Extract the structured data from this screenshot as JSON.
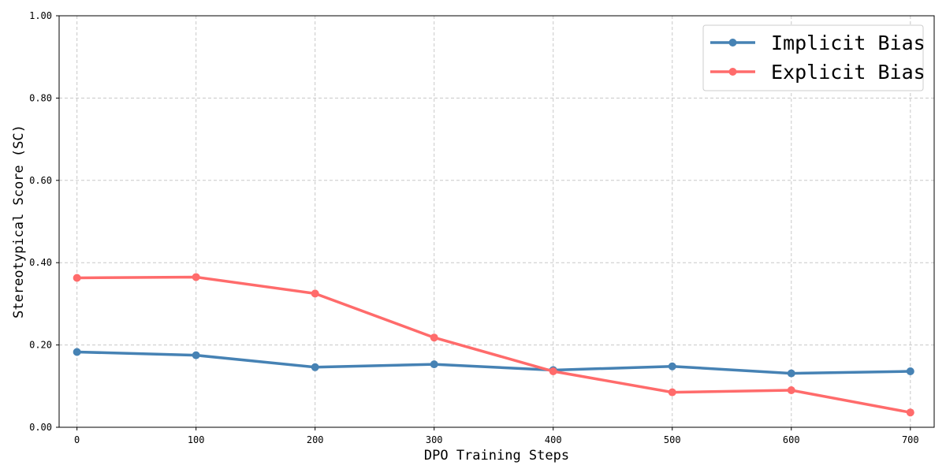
{
  "chart_data": {
    "type": "line",
    "title": "",
    "xlabel": "DPO Training Steps",
    "ylabel": "Stereotypical Score (SC)",
    "x": [
      0,
      100,
      200,
      300,
      400,
      500,
      600,
      700
    ],
    "xlim": [
      -15,
      720
    ],
    "ylim": [
      0,
      1
    ],
    "xticks": [
      0,
      100,
      200,
      300,
      400,
      500,
      600,
      700
    ],
    "xtick_labels": [
      "0",
      "100",
      "200",
      "300",
      "400",
      "500",
      "600",
      "700"
    ],
    "yticks": [
      0,
      0.2,
      0.4,
      0.6,
      0.8,
      1.0
    ],
    "ytick_labels": [
      "0.00",
      "0.20",
      "0.40",
      "0.60",
      "0.80",
      "1.00"
    ],
    "grid": true,
    "legend_position": "top-right",
    "series": [
      {
        "name": "Implicit Bias",
        "color": "#4682b4",
        "values": [
          0.183,
          0.175,
          0.146,
          0.153,
          0.139,
          0.148,
          0.131,
          0.136
        ]
      },
      {
        "name": "Explicit Bias",
        "color": "#ff6b6b",
        "values": [
          0.363,
          0.365,
          0.325,
          0.218,
          0.136,
          0.085,
          0.09,
          0.036
        ]
      }
    ]
  }
}
